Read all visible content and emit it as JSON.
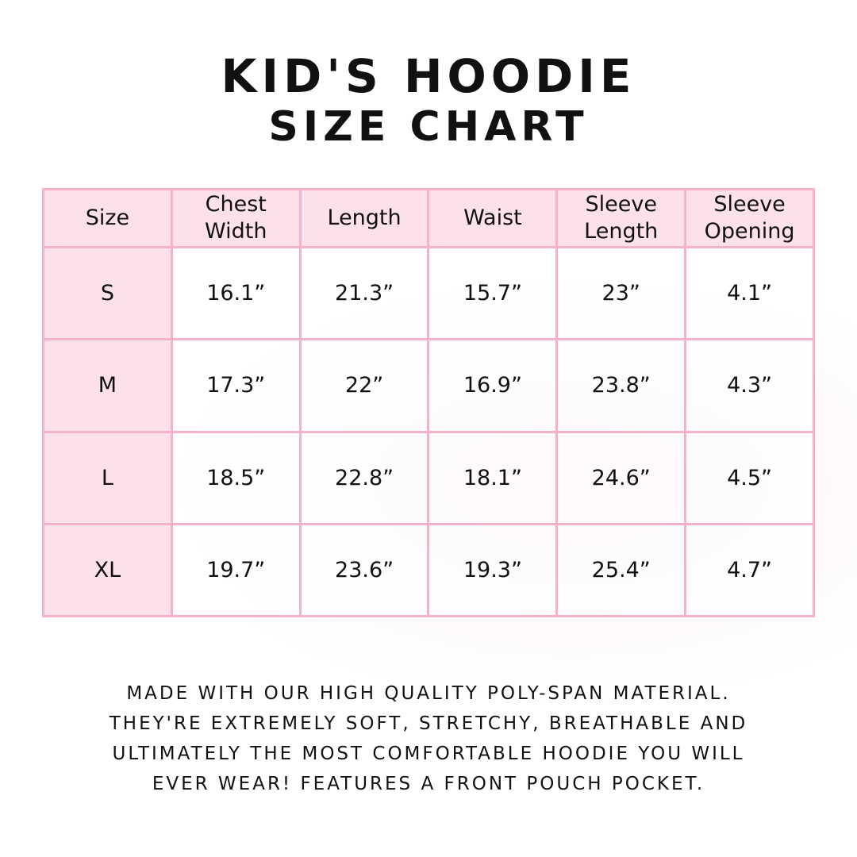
{
  "title": {
    "line1": "KID'S HOODIE",
    "line2": "SIZE CHART"
  },
  "colors": {
    "header_bg": "#fde1ea",
    "border": "#f6b3c8"
  },
  "table": {
    "headers": [
      "Size",
      "Chest Width",
      "Length",
      "Waist",
      "Sleeve Length",
      "Sleeve Opening"
    ],
    "rows": [
      [
        "S",
        "16.1”",
        "21.3”",
        "15.7”",
        "23”",
        "4.1”"
      ],
      [
        "M",
        "17.3”",
        "22”",
        "16.9”",
        "23.8”",
        "4.3”"
      ],
      [
        "L",
        "18.5”",
        "22.8”",
        "18.1”",
        "24.6”",
        "4.5”"
      ],
      [
        "XL",
        "19.7”",
        "23.6”",
        "19.3”",
        "25.4”",
        "4.7”"
      ]
    ]
  },
  "footer": {
    "lines": [
      "Made with our high quality poly-span material.",
      "They're extremely soft, stretchy, breathable and",
      "ultimately the most comfortable hoodie you will",
      "ever wear! Features a front pouch pocket."
    ]
  }
}
